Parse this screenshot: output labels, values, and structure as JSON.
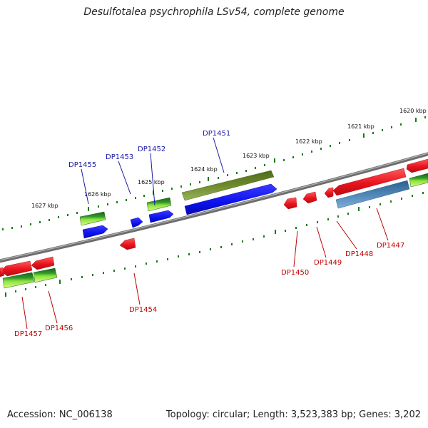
{
  "header": {
    "title": "Desulfotalea psychrophila LSv54, complete genome"
  },
  "footer": {
    "accession": "Accession: NC_006138",
    "summary": "Topology: circular; Length: 3,523,383 bp; Genes: 3,202"
  },
  "colors": {
    "backbone": "#7a7a7a",
    "ticks": "#1a7a1a",
    "gene_red": "#e8141e",
    "gene_blue": "#0c12ee",
    "gene_green": "#2e7d24",
    "gene_lightgreen": "#b4f050",
    "gene_olive": "#6f8a2c",
    "gene_steelblue": "#4f86b8",
    "label_top": "#1a1aa8",
    "label_bottom": "#c00000"
  },
  "scale": {
    "kbp_labels": [
      "1620 kbp",
      "1621 kbp",
      "1622 kbp",
      "1623 kbp",
      "1624 kbp",
      "1625 kbp",
      "1626 kbp",
      "1627 kbp"
    ]
  },
  "genes": {
    "top_labels": [
      "DP1451",
      "DP1452",
      "DP1453",
      "DP1455"
    ],
    "bottom_labels": [
      "DP1447",
      "DP1448",
      "DP1449",
      "DP1450",
      "DP1454",
      "DP1456",
      "DP1457"
    ]
  }
}
